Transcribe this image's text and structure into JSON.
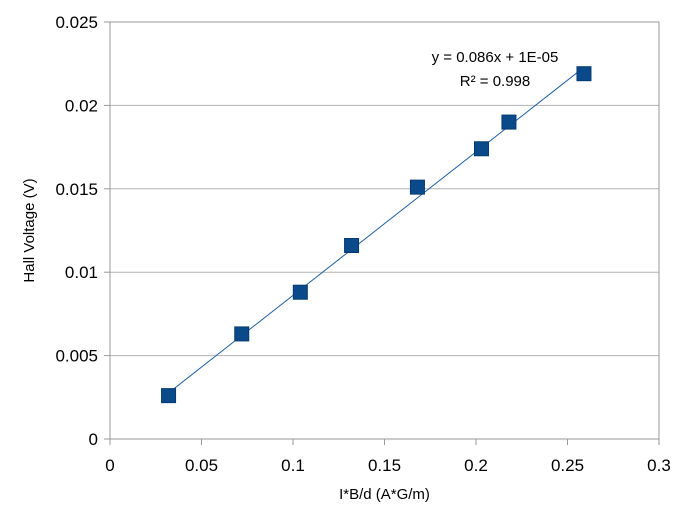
{
  "chart_data": {
    "type": "scatter",
    "title": "",
    "xlabel": "I*B/d (A*G/m)",
    "ylabel": "Hall Voltage (V)",
    "xlim": [
      0,
      0.3
    ],
    "ylim": [
      0,
      0.025
    ],
    "x_ticks": [
      "0",
      "0.05",
      "0.1",
      "0.15",
      "0.2",
      "0.25",
      "0.3"
    ],
    "y_ticks": [
      "0",
      "0.005",
      "0.01",
      "0.015",
      "0.02",
      "0.025"
    ],
    "grid": {
      "horizontal": true,
      "vertical": false
    },
    "legend": "none",
    "marker_color": "#0a4a8a",
    "line_color": "#1f5f9f",
    "series": [
      {
        "x": [
          0.032,
          0.072,
          0.104,
          0.132,
          0.168,
          0.203,
          0.218,
          0.259
        ],
        "y": [
          0.0026,
          0.0063,
          0.0088,
          0.0116,
          0.0151,
          0.0174,
          0.019,
          0.0219
        ]
      }
    ],
    "trendline": {
      "slope": 0.086,
      "intercept": 1e-05,
      "x_range": [
        0.032,
        0.259
      ]
    },
    "annotations": {
      "equation": "y = 0.086x + 1E-05",
      "r_squared": "R² = 0.998"
    }
  }
}
